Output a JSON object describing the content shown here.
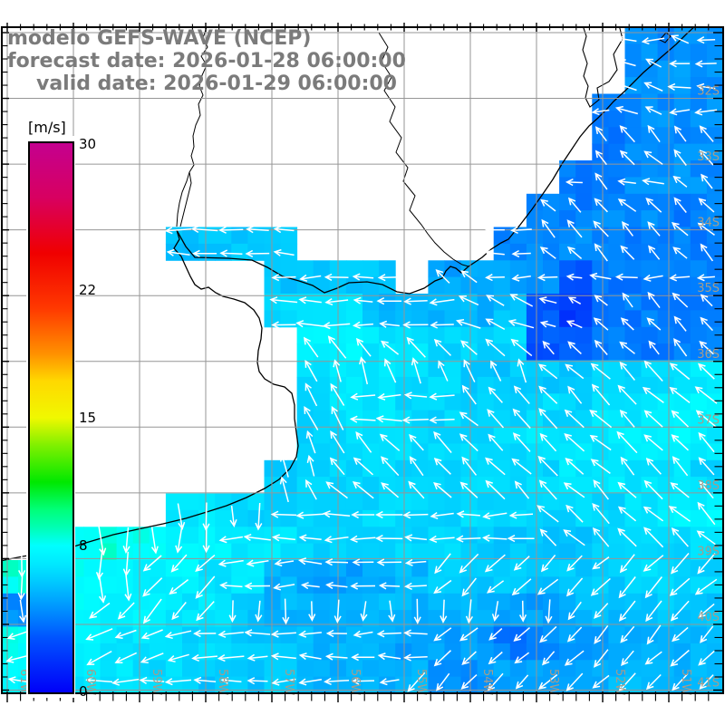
{
  "title": {
    "line1": "modelo GEFS-WAVE (NCEP)",
    "line2": "forecast date: 2026-01-28 06:00:00",
    "line3": "valid date: 2026-01-29 06:00:00"
  },
  "colorbar": {
    "unit": "[m/s]",
    "ticks": [
      {
        "label": "30",
        "v": 30
      },
      {
        "label": "22",
        "v": 22
      },
      {
        "label": "15",
        "v": 15
      },
      {
        "label": "8",
        "v": 8
      },
      {
        "label": "0",
        "v": 0
      }
    ],
    "vmin": 0,
    "vmax": 30,
    "stops": [
      [
        0,
        "#0000f8"
      ],
      [
        3,
        "#0054ff"
      ],
      [
        4.5,
        "#0090ff"
      ],
      [
        6,
        "#00c8ff"
      ],
      [
        7,
        "#00e8ff"
      ],
      [
        8,
        "#00ffff"
      ],
      [
        9,
        "#00ffb4"
      ],
      [
        10,
        "#00ff78"
      ],
      [
        11.5,
        "#00e800"
      ],
      [
        13.5,
        "#80f000"
      ],
      [
        15,
        "#f0f800"
      ],
      [
        17,
        "#ffd800"
      ],
      [
        18.5,
        "#ff9000"
      ],
      [
        21,
        "#ff3800"
      ],
      [
        24,
        "#f00000"
      ],
      [
        27,
        "#d80060"
      ],
      [
        30,
        "#c4008f"
      ]
    ]
  },
  "axes": {
    "lon_labels": [
      "61W",
      "60W",
      "59W",
      "58W",
      "57W",
      "56W",
      "55W",
      "54W",
      "53W",
      "52W",
      "51W"
    ],
    "lat_labels": [
      "32S",
      "33S",
      "34S",
      "35S",
      "36S",
      "37S",
      "38S",
      "39S",
      "40S",
      "41S"
    ]
  },
  "style": {
    "arrow_color": "#ffffff",
    "gridline_color": "#969696",
    "grid_label_color": "#a59c8b",
    "coast_color": "#000000",
    "title_color": "#7b7b7b",
    "sea_default": "#00c8ff"
  },
  "chart_data": {
    "type": "heatmap",
    "field_name": "wave/wind speed [m/s] with direction vectors",
    "lon_range": [
      "61W",
      "50W"
    ],
    "lat_range": [
      "31S",
      "41S"
    ],
    "cols": 22,
    "rows": 20,
    "value_encoding": "each char: base36 digit / 2 = m/s ; '.' = land / no data",
    "values": [
      "...................999",
      "...................9a9",
      "..................8999",
      "..................8999",
      ".................88999",
      "................889988",
      ".....cccc......8998888",
      "........cccc.aaa968888",
      "........deebbbbc648888",
      ".........ffeeddd668888",
      ".........deeddccccddde",
      ".........deeddddddeeff",
      ".........dddddddeeeffe",
      "........cddddddddeeeed",
      ".....eeddddddddddddeff",
      "..ghgffeedddddccccddde",
      "hhggffeebaabbccccccddd",
      "9ggffeecbbbbbbbaabbccc",
      "gffeeddccbbbaaa89aabbb",
      "ffeeddcccbbbb99aaabbbb"
    ],
    "direction_codes_deg": {
      "w": 180,
      "q": 157.5,
      "n": 135,
      "v": 112.5,
      "u": 90,
      "s": 270,
      "t": 225,
      "x": 202.5,
      "b": 247.5
    },
    "directions": [
      "...................wqw",
      "...................qww",
      "..................wqww",
      "..................nnnn",
      ".................wnwnn",
      "................nnnnnn",
      ".....wwww......wnnnnnn",
      "........wwww.nnwwwwwww",
      "........wwwwwwqqqqnnnn",
      ".........nnnnnnnnnnnnn",
      ".........vvvvvvvnnnnnn",
      ".........vvwwwnnnnnnnn",
      ".........vvnnnnnnnnnnn",
      "........vvnnnnnnnnnnnn",
      ".....ssswwwwwwwwnnnnnn",
      "..ssssswwwwwwwwwnnnnnn",
      "sssstttwwwwwwttttttttt",
      "sstttttssssssssssttttt",
      "xxxxxxwwwwwwwttttttttt",
      "wwwwwwwwwwwwtttttttttt"
    ]
  }
}
